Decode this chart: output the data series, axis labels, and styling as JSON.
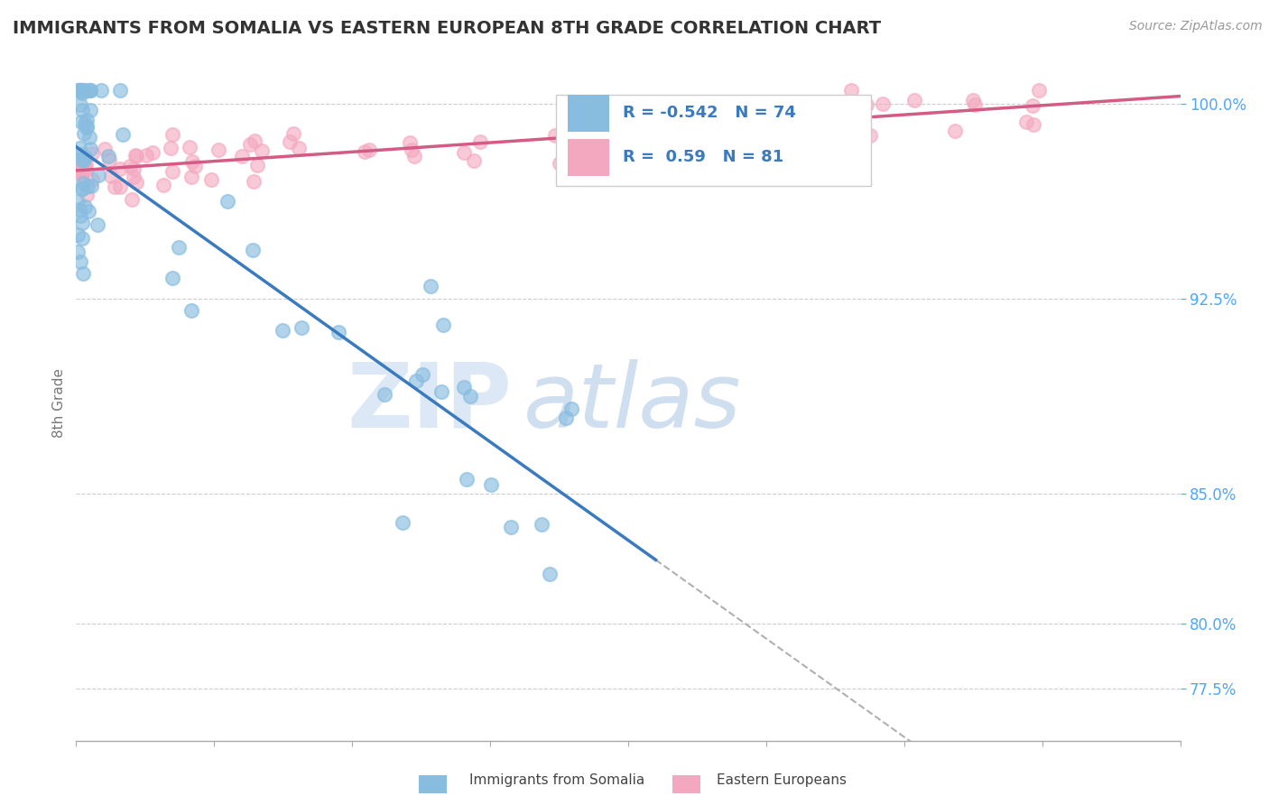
{
  "title": "IMMIGRANTS FROM SOMALIA VS EASTERN EUROPEAN 8TH GRADE CORRELATION CHART",
  "source": "Source: ZipAtlas.com",
  "ylabel": "8th Grade",
  "xmin": 0.0,
  "xmax": 0.8,
  "ymin": 0.755,
  "ymax": 1.015,
  "yticks": [
    0.775,
    0.8,
    0.85,
    0.925,
    1.0
  ],
  "ytick_labels": [
    "77.5%",
    "80.0%",
    "85.0%",
    "92.5%",
    "100.0%"
  ],
  "somalia_R": -0.542,
  "somalia_N": 74,
  "eastern_R": 0.59,
  "eastern_N": 81,
  "somalia_color": "#89bde0",
  "eastern_color": "#f4a8bf",
  "somalia_line_color": "#3a7abf",
  "eastern_line_color": "#d45b85",
  "watermark_zip_color": "#dce8f5",
  "watermark_atlas_color": "#d0dff0",
  "legend_text_color": "#3a7abf",
  "ytick_color": "#4da6ff",
  "xtick_color": "#4da6ff"
}
